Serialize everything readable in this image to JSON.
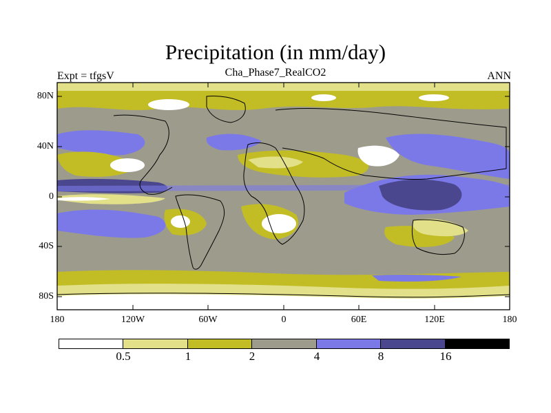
{
  "title": "Precipitation (in mm/day)",
  "subtitle_left": "Expt = tfgsV",
  "subtitle_center": "Cha_Phase7_RealCO2",
  "subtitle_right": "ANN",
  "y_ticks": [
    "80N",
    "40N",
    "0",
    "40S",
    "80S"
  ],
  "x_ticks": [
    "180",
    "120W",
    "60W",
    "0",
    "60E",
    "120E",
    "180"
  ],
  "colorbar": {
    "levels": [
      "0.5",
      "1",
      "2",
      "4",
      "8",
      "16"
    ],
    "colors": [
      "#ffffff",
      "#e3e08a",
      "#c2bd25",
      "#9d9c8c",
      "#7b79e8",
      "#4a478f",
      "#000000"
    ]
  },
  "palette": {
    "white": "#ffffff",
    "light_yellow": "#e3e08a",
    "olive": "#c2bd25",
    "gray": "#9d9c8c",
    "blue": "#7b79e8",
    "dark_blue": "#4a478f"
  }
}
